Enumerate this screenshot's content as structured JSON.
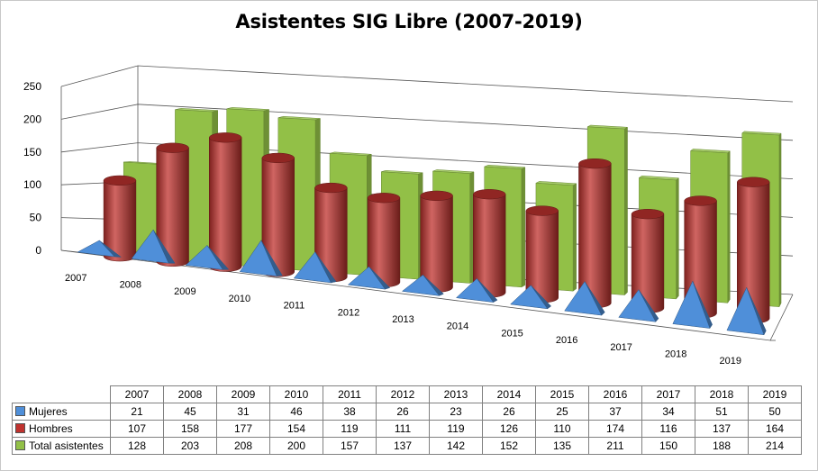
{
  "chart_data": {
    "type": "bar",
    "title": "Asistentes SIG Libre (2007-2019)",
    "categories": [
      "2007",
      "2008",
      "2009",
      "2010",
      "2011",
      "2012",
      "2013",
      "2014",
      "2015",
      "2016",
      "2017",
      "2018",
      "2019"
    ],
    "ylim": [
      0,
      250
    ],
    "yticks": [
      0,
      50,
      100,
      150,
      200,
      250
    ],
    "series": [
      {
        "name": "Mujeres",
        "color": "#4f8fd9",
        "shape": "pyramid",
        "values": [
          21,
          45,
          31,
          46,
          38,
          26,
          23,
          26,
          25,
          37,
          34,
          51,
          50
        ]
      },
      {
        "name": "Hombres",
        "color": "#c0322e",
        "shape": "cylinder",
        "values": [
          107,
          158,
          177,
          154,
          119,
          111,
          119,
          126,
          110,
          174,
          116,
          137,
          164
        ]
      },
      {
        "name": "Total asistentes",
        "color": "#92c047",
        "shape": "box",
        "values": [
          128,
          203,
          208,
          200,
          157,
          137,
          142,
          152,
          135,
          211,
          150,
          188,
          214
        ]
      }
    ],
    "table": true
  }
}
